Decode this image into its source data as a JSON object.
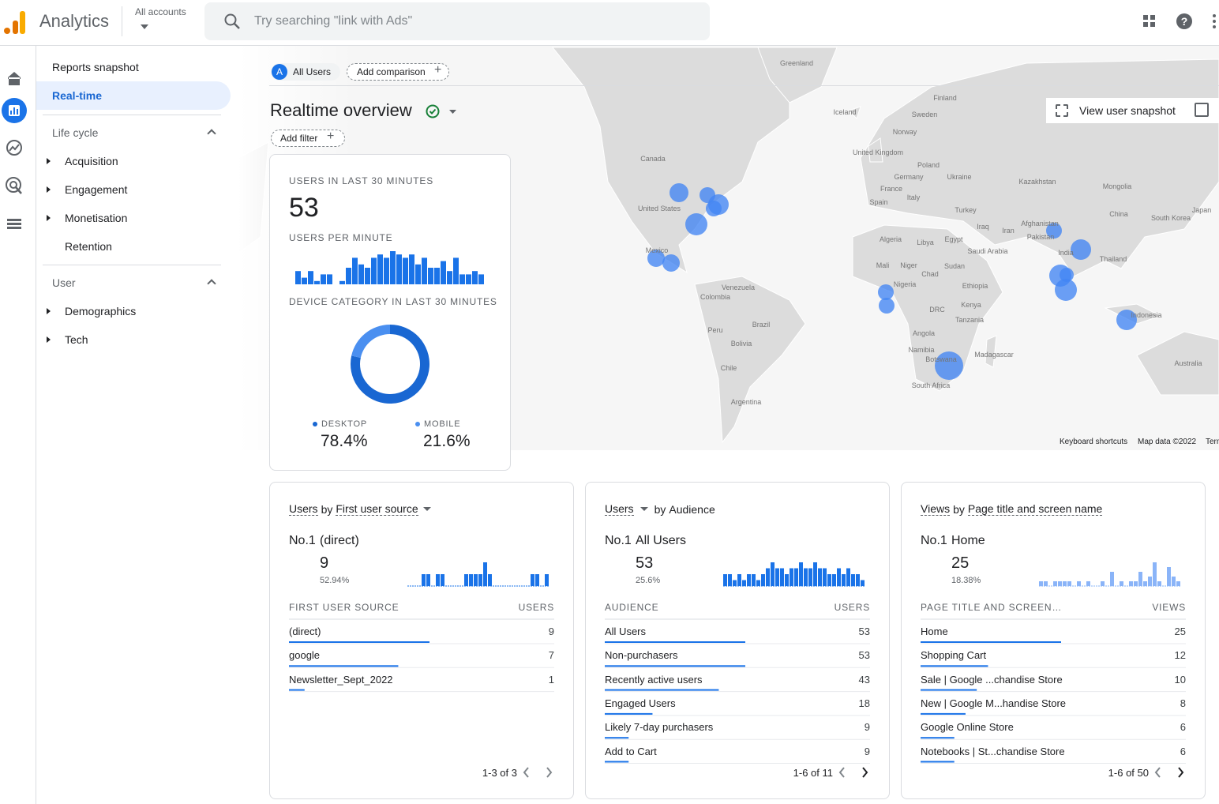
{
  "header": {
    "product": "Analytics",
    "account_label": "All accounts",
    "search_placeholder": "Try searching \"link with Ads\""
  },
  "nav": {
    "items": [
      "Reports snapshot",
      "Real-time"
    ],
    "sections": [
      {
        "title": "Life cycle",
        "items": [
          "Acquisition",
          "Engagement",
          "Monetisation",
          "Retention"
        ]
      },
      {
        "title": "User",
        "items": [
          "Demographics",
          "Tech"
        ]
      }
    ]
  },
  "toolbar": {
    "segment_badge": "A",
    "segment": "All Users",
    "add_comparison": "Add comparison",
    "title": "Realtime overview",
    "add_filter": "Add filter",
    "view_snapshot": "View user snapshot"
  },
  "map": {
    "labels": [
      "Greenland",
      "Finland",
      "Sweden",
      "Iceland",
      "Norway",
      "United Kingdom",
      "Poland",
      "Germany",
      "Ukraine",
      "Kazakhstan",
      "Mongolia",
      "France",
      "Italy",
      "Spain",
      "Turkey",
      "China",
      "South Korea",
      "Japan",
      "Canada",
      "United States",
      "Mexico",
      "Venezuela",
      "Colombia",
      "Peru",
      "Brazil",
      "Bolivia",
      "Chile",
      "Argentina",
      "Algeria",
      "Libya",
      "Egypt",
      "Iraq",
      "Iran",
      "Afghanistan",
      "Pakistan",
      "India",
      "Saudi Arabia",
      "Mali",
      "Niger",
      "Chad",
      "Sudan",
      "Nigeria",
      "Ethiopia",
      "Kenya",
      "DRC",
      "Tanzania",
      "Angola",
      "Namibia",
      "Botswana",
      "Madagascar",
      "South Africa",
      "Thailand",
      "Indonesia",
      "Australia"
    ],
    "footer": [
      "Keyboard shortcuts",
      "Map data ©2022",
      "Terms"
    ]
  },
  "realtime_card": {
    "users_label": "USERS IN LAST 30 MINUTES",
    "users": 53,
    "per_minute_label": "USERS PER MINUTE",
    "per_minute": {
      "values": [
        4,
        2,
        4,
        1,
        3,
        3,
        0,
        1,
        5,
        8,
        6,
        5,
        8,
        9,
        8,
        10,
        9,
        8,
        9,
        6,
        8,
        5,
        5,
        7,
        4,
        8,
        3,
        3,
        4,
        3
      ],
      "color": "#1a73e8"
    },
    "device_label": "DEVICE CATEGORY IN LAST 30 MINUTES",
    "devices": {
      "type": "pie",
      "categories": [
        "DESKTOP",
        "MOBILE"
      ],
      "values": [
        78.4,
        21.6
      ],
      "value_labels": [
        "78.4%",
        "21.6%"
      ],
      "colors": [
        "#1967d2",
        "#4a8ff0"
      ]
    }
  },
  "cards": [
    {
      "title_metric": "Users",
      "title_by": "by",
      "title_dimension": "First user source",
      "top": {
        "rank": "No.1",
        "name": "(direct)",
        "value": 9,
        "share": "52.94%"
      },
      "spark": {
        "values": [
          0,
          0,
          0,
          2,
          2,
          0,
          2,
          2,
          0,
          0,
          0,
          0,
          2,
          2,
          2,
          2,
          4,
          2,
          0,
          0,
          0,
          0,
          0,
          0,
          0,
          0,
          2,
          2,
          0,
          2
        ],
        "color": "#1a73e8"
      },
      "columns": [
        "FIRST USER SOURCE",
        "USERS"
      ],
      "rows": [
        {
          "label": "(direct)",
          "value": 9
        },
        {
          "label": "google",
          "value": 7
        },
        {
          "label": "Newsletter_Sept_2022",
          "value": 1
        }
      ],
      "pagination": "1-3 of 3"
    },
    {
      "title_metric": "Users",
      "title_by": "by",
      "title_dimension": "Audience",
      "top": {
        "rank": "No.1",
        "name": "All Users",
        "value": 53,
        "share": "25.6%"
      },
      "spark": {
        "values": [
          2,
          2,
          1,
          2,
          1,
          2,
          2,
          1,
          2,
          3,
          4,
          3,
          3,
          2,
          3,
          3,
          4,
          3,
          3,
          4,
          3,
          3,
          2,
          2,
          3,
          2,
          3,
          2,
          2,
          1
        ],
        "color": "#1a73e8"
      },
      "columns": [
        "AUDIENCE",
        "USERS"
      ],
      "rows": [
        {
          "label": "All Users",
          "value": 53
        },
        {
          "label": "Non-purchasers",
          "value": 53
        },
        {
          "label": "Recently active users",
          "value": 43
        },
        {
          "label": "Engaged Users",
          "value": 18
        },
        {
          "label": "Likely 7-day purchasers",
          "value": 9
        },
        {
          "label": "Add to Cart",
          "value": 9
        }
      ],
      "pagination": "1-6 of 11"
    },
    {
      "title_metric": "Views",
      "title_by": "by",
      "title_dimension": "Page title and screen name",
      "top": {
        "rank": "No.1",
        "name": "Home",
        "value": 25,
        "share": "18.38%"
      },
      "spark": {
        "values": [
          1,
          1,
          0,
          1,
          1,
          1,
          1,
          0,
          1,
          0,
          1,
          0,
          0,
          1,
          0,
          3,
          0,
          1,
          0,
          1,
          1,
          3,
          1,
          2,
          5,
          1,
          0,
          4,
          2,
          1
        ],
        "color": "#8ab4f8"
      },
      "columns": [
        "PAGE TITLE AND SCREEN…",
        "VIEWS"
      ],
      "rows": [
        {
          "label": "Home",
          "value": 25
        },
        {
          "label": "Shopping Cart",
          "value": 12
        },
        {
          "label": "Sale | Google ...chandise Store",
          "value": 10
        },
        {
          "label": "New | Google M...handise Store",
          "value": 8
        },
        {
          "label": "Google Online Store",
          "value": 6
        },
        {
          "label": "Notebooks | St...chandise Store",
          "value": 6
        }
      ],
      "pagination": "1-6 of 50"
    }
  ]
}
